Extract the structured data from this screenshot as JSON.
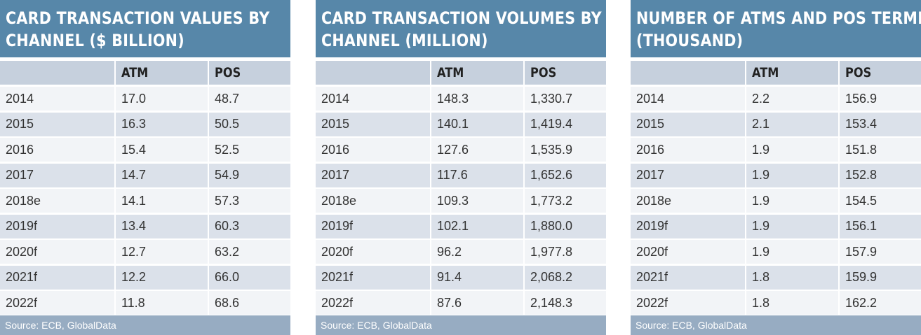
{
  "tables": [
    {
      "title": "CARD TRANSACTION VALUES BY CHANNEL ($ BILLION)",
      "title_lines": [
        "CARD TRANSACTION VALUES BY",
        "CHANNEL ($ BILLION)"
      ],
      "columns": [
        "",
        "ATM",
        "POS"
      ],
      "rows": [
        [
          "2014",
          "17.0",
          "48.7"
        ],
        [
          "2015",
          "16.3",
          "50.5"
        ],
        [
          "2016",
          "15.4",
          "52.5"
        ],
        [
          "2017",
          "14.7",
          "54.9"
        ],
        [
          "2018e",
          "14.1",
          "57.3"
        ],
        [
          "2019f",
          "13.4",
          "60.3"
        ],
        [
          "2020f",
          "12.7",
          "63.2"
        ],
        [
          "2021f",
          "12.2",
          "66.0"
        ],
        [
          "2022f",
          "11.8",
          "68.6"
        ]
      ],
      "source": "Source: ECB, GlobalData"
    },
    {
      "title": "CARD TRANSACTION VOLUMES BY CHANNEL (MILLION)",
      "title_lines": [
        "CARD TRANSACTION VOLUMES BY",
        "CHANNEL (MILLION)"
      ],
      "columns": [
        "",
        "ATM",
        "POS"
      ],
      "rows": [
        [
          "2014",
          "148.3",
          "1,330.7"
        ],
        [
          "2015",
          "140.1",
          "1,419.4"
        ],
        [
          "2016",
          "127.6",
          "1,535.9"
        ],
        [
          "2017",
          "117.6",
          "1,652.6"
        ],
        [
          "2018e",
          "109.3",
          "1,773.2"
        ],
        [
          "2019f",
          "102.1",
          "1,880.0"
        ],
        [
          "2020f",
          "96.2",
          "1,977.8"
        ],
        [
          "2021f",
          "91.4",
          "2,068.2"
        ],
        [
          "2022f",
          "87.6",
          "2,148.3"
        ]
      ],
      "source": "Source: ECB, GlobalData"
    },
    {
      "title": "NUMBER OF ATMS AND POS TERMINALS (THOUSAND)",
      "title_lines": [
        "NUMBER OF ATMS AND POS TERMINALS",
        "(THOUSAND)"
      ],
      "columns": [
        "",
        "ATM",
        "POS"
      ],
      "rows": [
        [
          "2014",
          "2.2",
          "156.9"
        ],
        [
          "2015",
          "2.1",
          "153.4"
        ],
        [
          "2016",
          "1.9",
          "151.8"
        ],
        [
          "2017",
          "1.9",
          "152.8"
        ],
        [
          "2018e",
          "1.9",
          "154.5"
        ],
        [
          "2019f",
          "1.9",
          "156.1"
        ],
        [
          "2020f",
          "1.9",
          "157.9"
        ],
        [
          "2021f",
          "1.8",
          "159.9"
        ],
        [
          "2022f",
          "1.8",
          "162.2"
        ]
      ],
      "source": "Source: ECB, GlobalData"
    }
  ],
  "colors": {
    "title_bg": "#5787a9",
    "header_bg": "#c6d0dd",
    "row_light": "#f2f4f7",
    "row_dark": "#dbe1ea",
    "source_bg": "#97acc2"
  },
  "chart_data": [
    {
      "type": "table",
      "title": "CARD TRANSACTION VALUES BY CHANNEL ($ BILLION)",
      "categories": [
        "2014",
        "2015",
        "2016",
        "2017",
        "2018e",
        "2019f",
        "2020f",
        "2021f",
        "2022f"
      ],
      "series": [
        {
          "name": "ATM",
          "values": [
            17.0,
            16.3,
            15.4,
            14.7,
            14.1,
            13.4,
            12.7,
            12.2,
            11.8
          ]
        },
        {
          "name": "POS",
          "values": [
            48.7,
            50.5,
            52.5,
            54.9,
            57.3,
            60.3,
            63.2,
            66.0,
            68.6
          ]
        }
      ]
    },
    {
      "type": "table",
      "title": "CARD TRANSACTION VOLUMES BY CHANNEL (MILLION)",
      "categories": [
        "2014",
        "2015",
        "2016",
        "2017",
        "2018e",
        "2019f",
        "2020f",
        "2021f",
        "2022f"
      ],
      "series": [
        {
          "name": "ATM",
          "values": [
            148.3,
            140.1,
            127.6,
            117.6,
            109.3,
            102.1,
            96.2,
            91.4,
            87.6
          ]
        },
        {
          "name": "POS",
          "values": [
            1330.7,
            1419.4,
            1535.9,
            1652.6,
            1773.2,
            1880.0,
            1977.8,
            2068.2,
            2148.3
          ]
        }
      ]
    },
    {
      "type": "table",
      "title": "NUMBER OF ATMS AND POS TERMINALS (THOUSAND)",
      "categories": [
        "2014",
        "2015",
        "2016",
        "2017",
        "2018e",
        "2019f",
        "2020f",
        "2021f",
        "2022f"
      ],
      "series": [
        {
          "name": "ATM",
          "values": [
            2.2,
            2.1,
            1.9,
            1.9,
            1.9,
            1.9,
            1.9,
            1.8,
            1.8
          ]
        },
        {
          "name": "POS",
          "values": [
            156.9,
            153.4,
            151.8,
            152.8,
            154.5,
            156.1,
            157.9,
            159.9,
            162.2
          ]
        }
      ]
    }
  ]
}
